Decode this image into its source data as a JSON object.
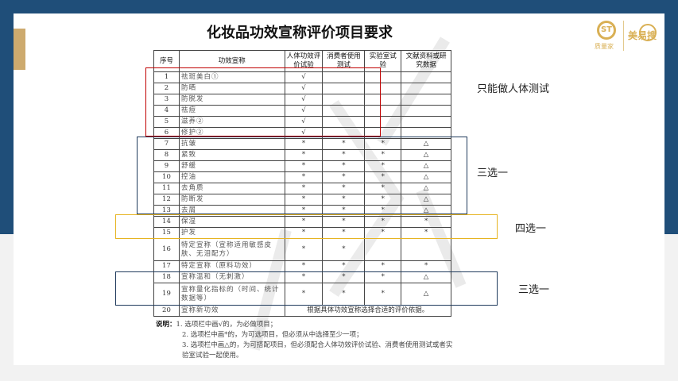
{
  "title": "化妆品功效宣称评价项目要求",
  "logo": {
    "brand1": "ST",
    "brand1_caption": "质量家",
    "brand2": "美易搜"
  },
  "colors": {
    "navy": "#1f4e79",
    "gold": "#cdaa6e",
    "red": "#c00000",
    "box_gold": "#e6b422",
    "box_navy": "#1f3a5c"
  },
  "table": {
    "headers": [
      "序号",
      "功效宣称",
      "人体功效评价试验",
      "消费者使用测试",
      "实验室试验",
      "文献资料或研究数据"
    ],
    "rows": [
      [
        "1",
        "祛斑美白①",
        "√",
        "",
        "",
        ""
      ],
      [
        "2",
        "防晒",
        "√",
        "",
        "",
        ""
      ],
      [
        "3",
        "防脱发",
        "√",
        "",
        "",
        ""
      ],
      [
        "4",
        "祛痘",
        "√",
        "",
        "",
        ""
      ],
      [
        "5",
        "滋养②",
        "√",
        "",
        "",
        ""
      ],
      [
        "6",
        "修护②",
        "√",
        "",
        "",
        ""
      ],
      [
        "7",
        "抗皱",
        "*",
        "*",
        "*",
        "△"
      ],
      [
        "8",
        "紧致",
        "*",
        "*",
        "*",
        "△"
      ],
      [
        "9",
        "舒缓",
        "*",
        "*",
        "*",
        "△"
      ],
      [
        "10",
        "控油",
        "*",
        "*",
        "*",
        "△"
      ],
      [
        "11",
        "去角质",
        "*",
        "*",
        "*",
        "△"
      ],
      [
        "12",
        "防断发",
        "*",
        "*",
        "*",
        "△"
      ],
      [
        "13",
        "去屑",
        "*",
        "*",
        "*",
        "△"
      ],
      [
        "14",
        "保湿",
        "*",
        "*",
        "*",
        "*"
      ],
      [
        "15",
        "护发",
        "*",
        "*",
        "*",
        "*"
      ],
      [
        "16",
        "特定宣称（宣称适用敏感皮肤、无泪配方）",
        "*",
        "*",
        "",
        ""
      ],
      [
        "17",
        "特定宣称（原料功效）",
        "*",
        "*",
        "*",
        "*"
      ],
      [
        "18",
        "宣称温和（无刺激）",
        "*",
        "*",
        "*",
        "△"
      ],
      [
        "19",
        "宣称量化指标的（时间、统计数据等）",
        "*",
        "*",
        "*",
        "△"
      ]
    ],
    "last_row": {
      "no": "20",
      "claim": "宣称新功效",
      "note": "根据具体功效宣称选择合适的评价依据。"
    }
  },
  "notes": {
    "label": "说明：",
    "items": [
      "1. 选项栏中画√的，为必做项目；",
      "2. 选项栏中画*的，为可选项目，但必须从中选择至少一项；",
      "3. 选项栏中画△的，为可搭配项目，但必须配合人体功效评价试验、消费者使用测试或者实验室试验一起使用。"
    ]
  },
  "annotations": [
    "只能做人体测试",
    "三选一",
    "四选一",
    "三选一"
  ]
}
